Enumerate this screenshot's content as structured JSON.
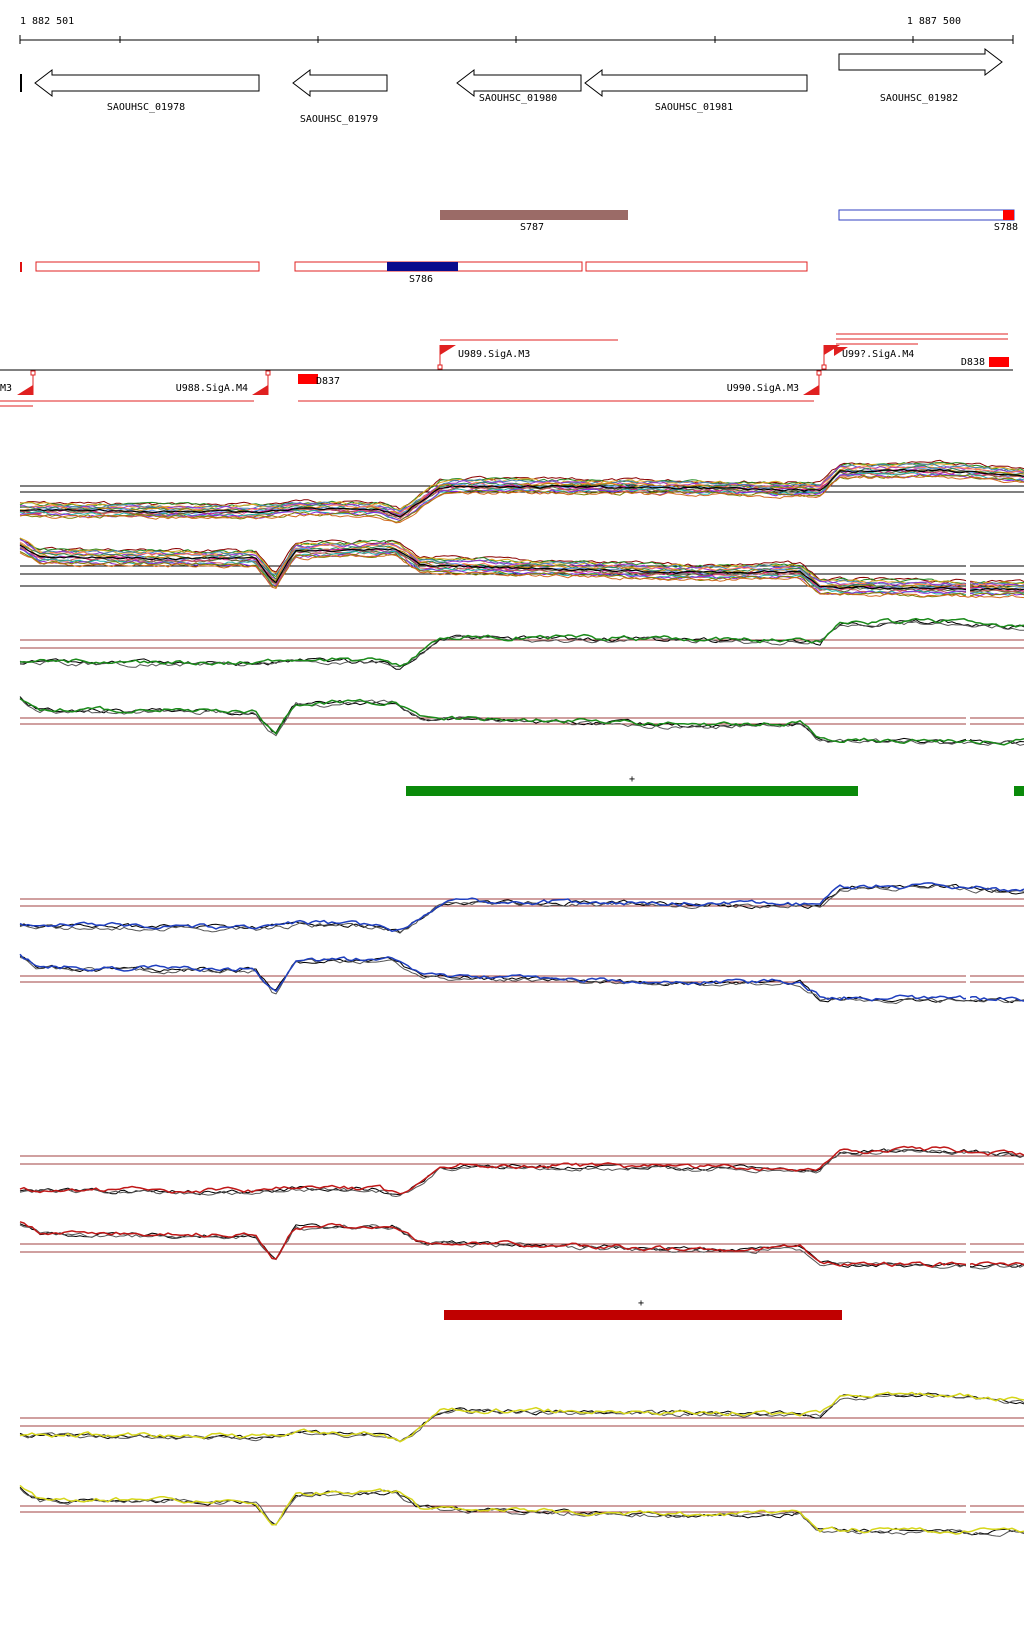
{
  "ruler": {
    "start_label": "1 882 501",
    "end_label": "1 887 500"
  },
  "genes": [
    {
      "label": "SAOUHSC_01978",
      "strand": "-"
    },
    {
      "label": "SAOUHSC_01979",
      "strand": "-"
    },
    {
      "label": "SAOUHSC_01980",
      "strand": "-"
    },
    {
      "label": "SAOUHSC_01981",
      "strand": "-"
    },
    {
      "label": "SAOUHSC_01982",
      "strand": "+"
    }
  ],
  "segments": [
    {
      "label": "S787",
      "color": "#9b6b67"
    },
    {
      "label": "S788",
      "color": "#ff0000"
    },
    {
      "label": "S786",
      "color": "#0a0a8c"
    }
  ],
  "promoters": [
    {
      "label": "U989.SigA.M3"
    },
    {
      "label": "U99?.SigA.M4"
    },
    {
      "label": "D838"
    },
    {
      "label": "M3"
    },
    {
      "label": "U988.SigA.M4"
    },
    {
      "label": "D837"
    },
    {
      "label": "U990.SigA.M3"
    }
  ],
  "expression_panels": [
    {
      "name": "all-conditions",
      "color": "multi"
    },
    {
      "name": "condition-green",
      "color": "#1a8a1a",
      "bar_color": "#0a8a0a",
      "bar_label": "+"
    },
    {
      "name": "condition-blue",
      "color": "#1f3fbf"
    },
    {
      "name": "condition-red",
      "color": "#c01818",
      "bar_color": "#c00000",
      "bar_label": "+"
    },
    {
      "name": "condition-yellow",
      "color": "#d6d61a"
    }
  ]
}
